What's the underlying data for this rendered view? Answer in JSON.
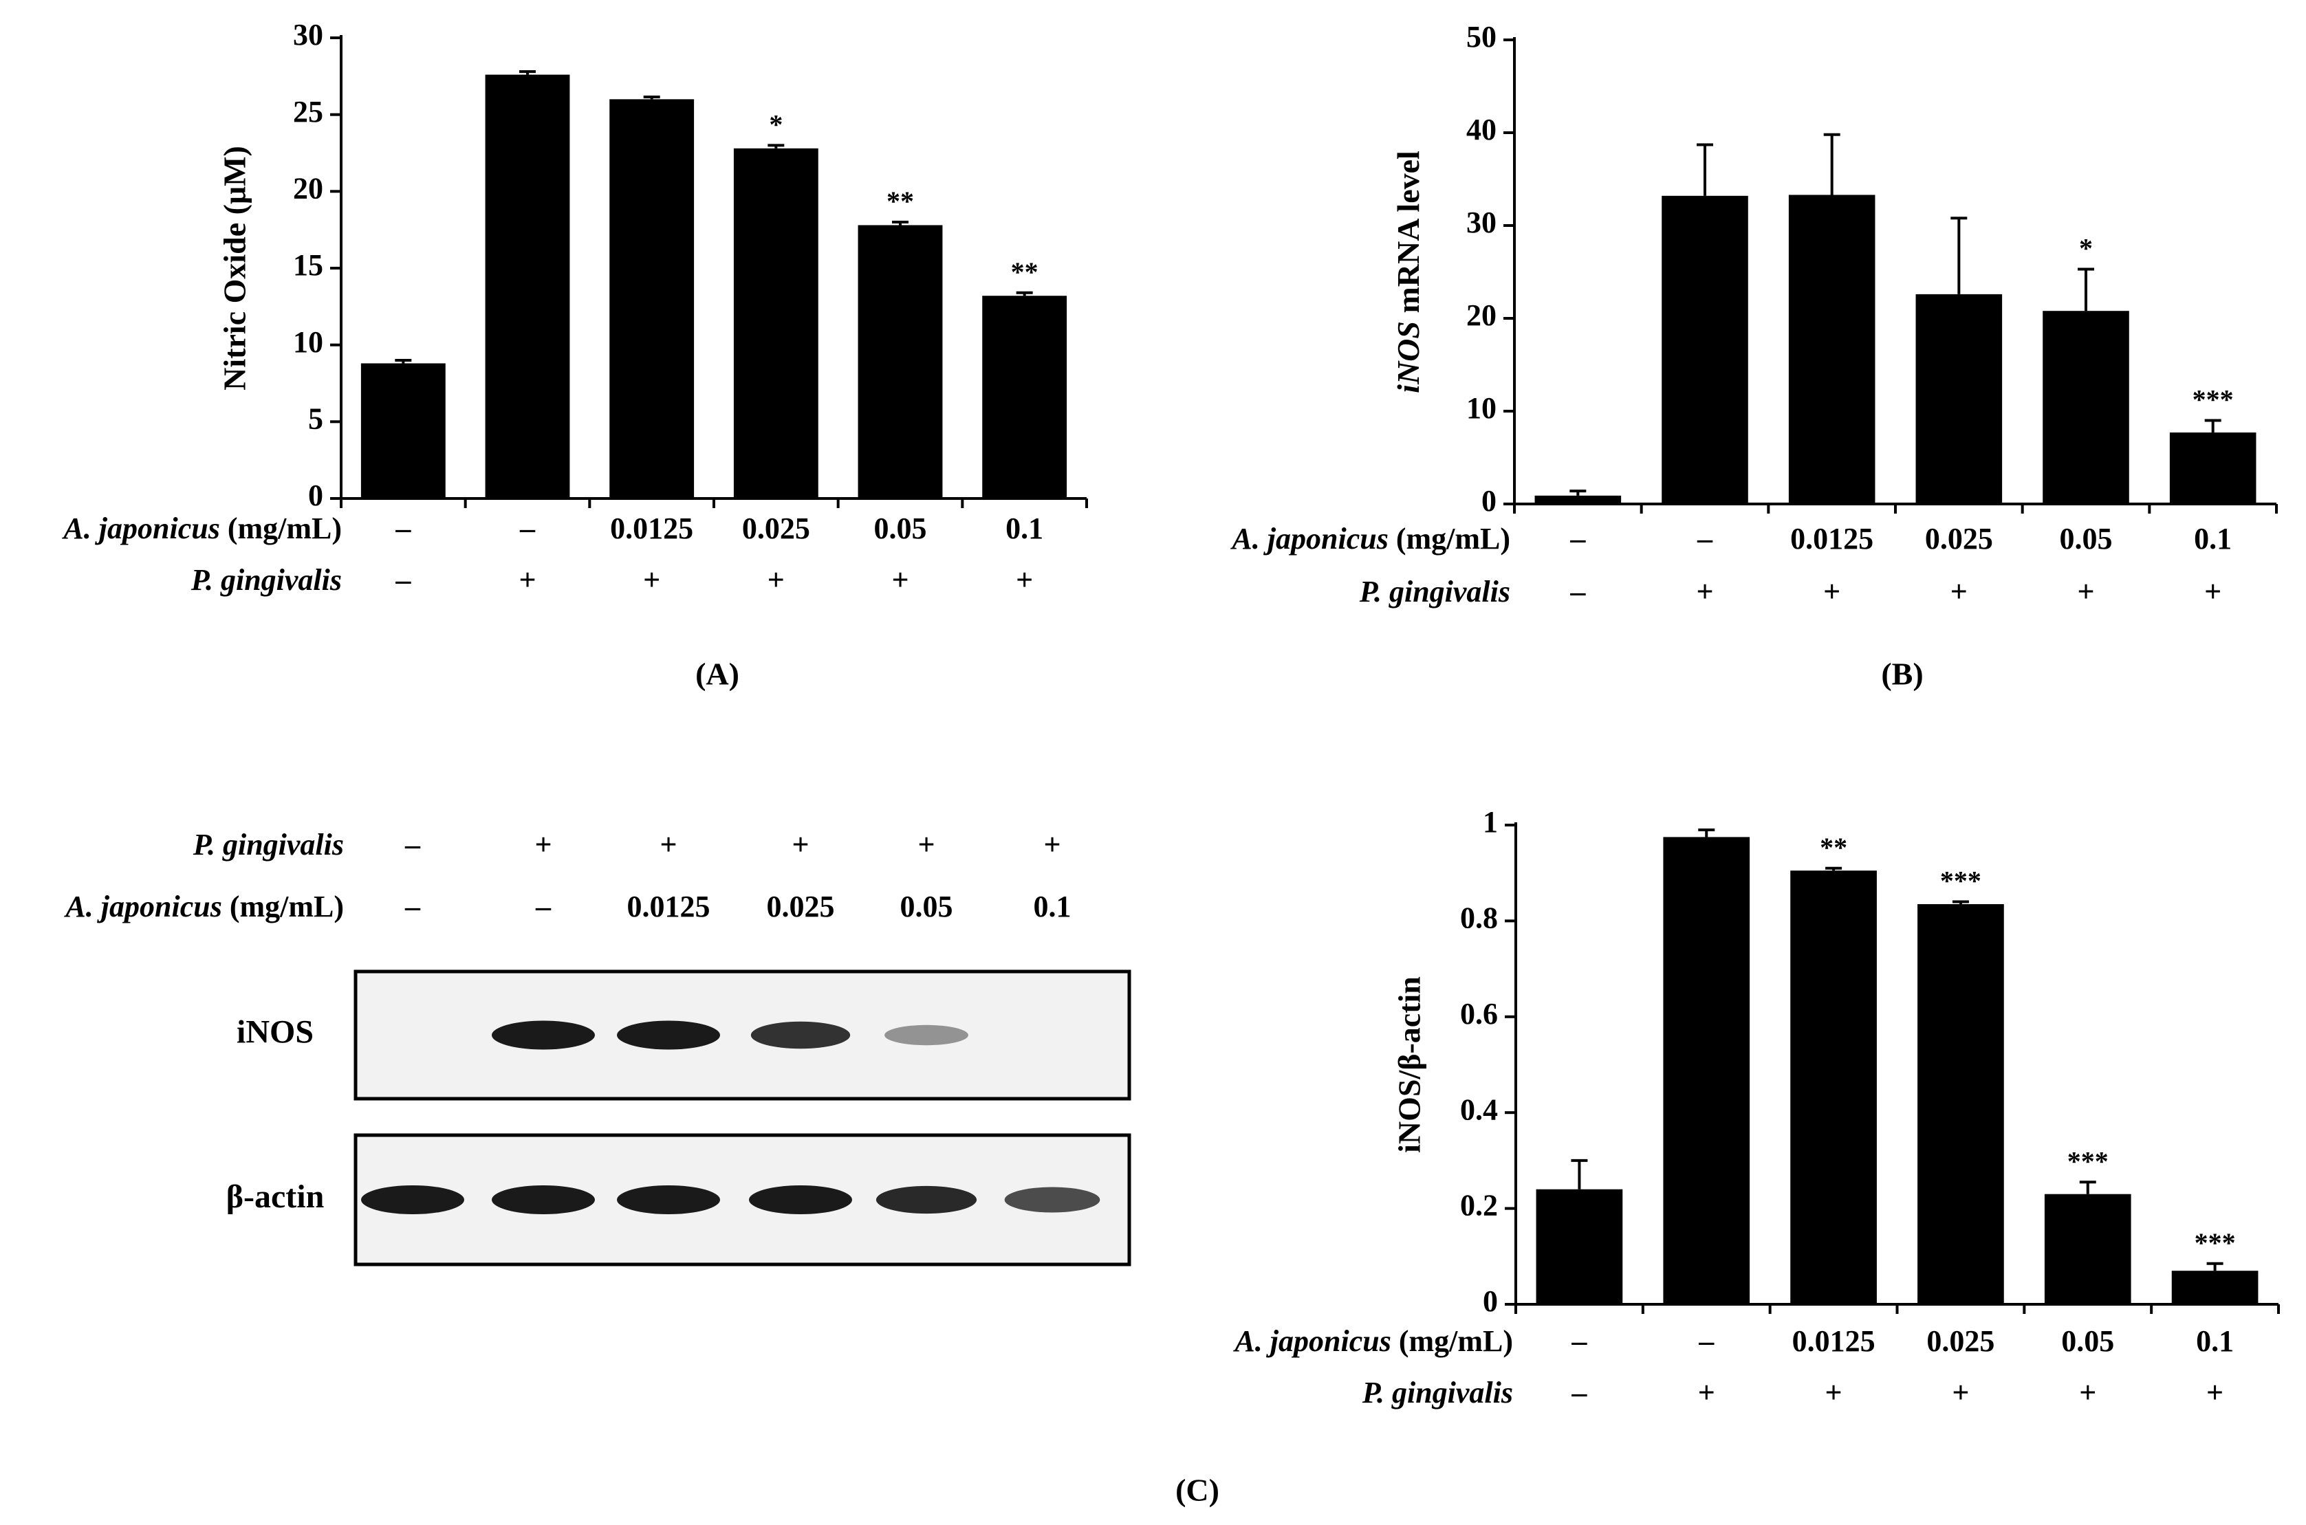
{
  "colors": {
    "bar": "#000000",
    "band": "#1a1a1a",
    "blot_bg": "#f2f2f2",
    "blot_frame": "#000000"
  },
  "chart_data": [
    {
      "panel_label": "(A)",
      "type": "bar",
      "ylabel": "Nitric Oxide (μM)",
      "ylim": [
        0,
        30
      ],
      "yticks": [
        "0",
        "5",
        "10",
        "15",
        "20",
        "25",
        "30"
      ],
      "categories": [
        "1",
        "2",
        "3",
        "4",
        "5",
        "6"
      ],
      "values": [
        8.8,
        27.6,
        26.0,
        22.8,
        17.8,
        13.2
      ],
      "errors": [
        0.2,
        0.2,
        0.15,
        0.2,
        0.2,
        0.2
      ],
      "significance": [
        "",
        "",
        "",
        "*",
        "**",
        "**"
      ],
      "grid": false,
      "conditions": [
        {
          "name_italic": "A. japonicus",
          "name_suffix": " (mg/mL)",
          "values": [
            "–",
            "–",
            "0.0125",
            "0.025",
            "0.05",
            "0.1"
          ]
        },
        {
          "name_italic": "P. gingivalis",
          "name_suffix": "",
          "values": [
            "–",
            "+",
            "+",
            "+",
            "+",
            "+"
          ]
        }
      ]
    },
    {
      "panel_label": "(B)",
      "type": "bar",
      "ylabel_italic": "iNOS",
      "ylabel_suffix": " mRNA level",
      "ylim": [
        0,
        50
      ],
      "yticks": [
        "0",
        "10",
        "20",
        "30",
        "40",
        "50"
      ],
      "categories": [
        "1",
        "2",
        "3",
        "4",
        "5",
        "6"
      ],
      "values": [
        0.9,
        33.2,
        33.3,
        22.6,
        20.8,
        7.7
      ],
      "errors": [
        0.5,
        5.5,
        6.5,
        8.2,
        4.5,
        1.3
      ],
      "significance": [
        "",
        "",
        "",
        "",
        "*",
        "***"
      ],
      "grid": false,
      "conditions": [
        {
          "name_italic": "A. japonicus",
          "name_suffix": " (mg/mL)",
          "values": [
            "–",
            "–",
            "0.0125",
            "0.025",
            "0.05",
            "0.1"
          ]
        },
        {
          "name_italic": "P. gingivalis",
          "name_suffix": "",
          "values": [
            "–",
            "+",
            "+",
            "+",
            "+",
            "+"
          ]
        }
      ]
    },
    {
      "panel_label": "(C)",
      "type": "bar",
      "ylabel": "iNOS/β-actin",
      "ylim": [
        0,
        1
      ],
      "yticks": [
        "0",
        "0.2",
        "0.4",
        "0.6",
        "0.8",
        "1"
      ],
      "categories": [
        "1",
        "2",
        "3",
        "4",
        "5",
        "6"
      ],
      "values": [
        0.24,
        0.975,
        0.905,
        0.835,
        0.23,
        0.07
      ],
      "errors": [
        0.06,
        0.015,
        0.005,
        0.005,
        0.025,
        0.015
      ],
      "significance": [
        "",
        "",
        "**",
        "***",
        "***",
        "***"
      ],
      "grid": false,
      "conditions": [
        {
          "name_italic": "A. japonicus",
          "name_suffix": " (mg/mL)",
          "values": [
            "–",
            "–",
            "0.0125",
            "0.025",
            "0.05",
            "0.1"
          ]
        },
        {
          "name_italic": "P. gingivalis",
          "name_suffix": "",
          "values": [
            "–",
            "+",
            "+",
            "+",
            "+",
            "+"
          ]
        }
      ]
    }
  ],
  "blot": {
    "conditions": [
      {
        "name_italic": "P. gingivalis",
        "name_suffix": "",
        "values": [
          "–",
          "+",
          "+",
          "+",
          "+",
          "+"
        ]
      },
      {
        "name_italic": "A. japonicus",
        "name_suffix": " (mg/mL)",
        "values": [
          "–",
          "–",
          "0.0125",
          "0.025",
          "0.05",
          "0.1"
        ]
      }
    ],
    "rows": [
      {
        "label": "iNOS",
        "intensity": [
          0,
          1,
          1,
          0.85,
          0.25,
          0
        ]
      },
      {
        "label": "β-actin",
        "intensity": [
          1,
          1,
          1,
          1,
          0.9,
          0.7
        ]
      }
    ]
  }
}
